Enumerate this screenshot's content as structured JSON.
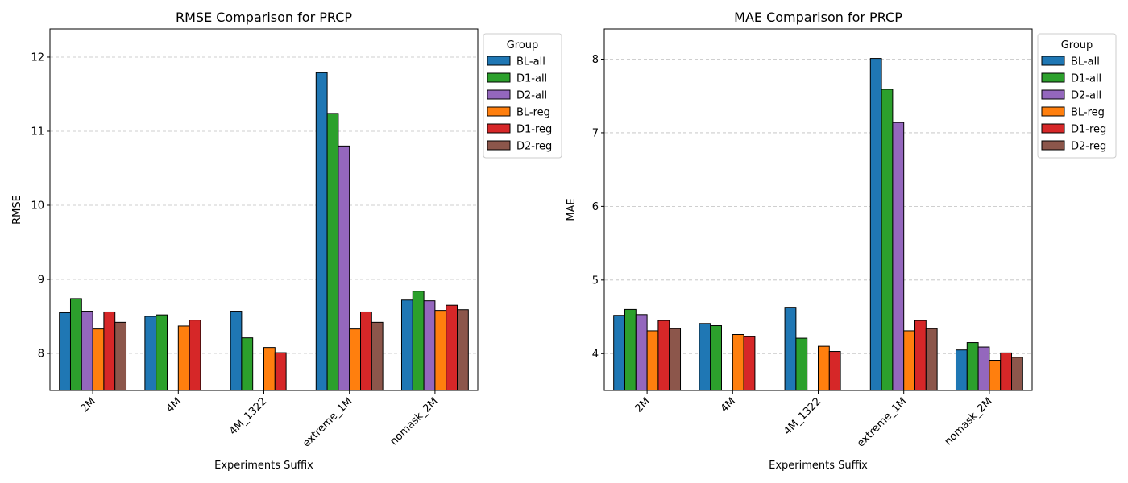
{
  "chart_data": [
    {
      "type": "bar",
      "title": "RMSE Comparison for PRCP",
      "xlabel": "Experiments Suffix",
      "ylabel": "RMSE",
      "ylim": [
        7.5,
        12.38
      ],
      "yticks": [
        8,
        9,
        10,
        11,
        12
      ],
      "grid": "y-dashed",
      "legend_title": "Group",
      "legend_position": "outside-right-top",
      "categories": [
        "2M",
        "4M",
        "4M_1322",
        "extreme_1M",
        "nomask_2M"
      ],
      "series": [
        {
          "name": "BL-all",
          "color": "#1f77b4",
          "values": [
            8.55,
            8.5,
            8.57,
            11.79,
            8.72
          ]
        },
        {
          "name": "D1-all",
          "color": "#2ca02c",
          "values": [
            8.74,
            8.52,
            8.21,
            11.24,
            8.84
          ]
        },
        {
          "name": "D2-all",
          "color": "#9467bd",
          "values": [
            8.57,
            null,
            null,
            10.8,
            8.71
          ]
        },
        {
          "name": "BL-reg",
          "color": "#ff7f0e",
          "values": [
            8.33,
            8.37,
            8.08,
            8.33,
            8.58
          ]
        },
        {
          "name": "D1-reg",
          "color": "#d62728",
          "values": [
            8.56,
            8.45,
            8.01,
            8.56,
            8.65
          ]
        },
        {
          "name": "D2-reg",
          "color": "#8c564b",
          "values": [
            8.42,
            null,
            null,
            8.42,
            8.59
          ]
        }
      ]
    },
    {
      "type": "bar",
      "title": "MAE Comparison for PRCP",
      "xlabel": "Experiments Suffix",
      "ylabel": "MAE",
      "ylim": [
        3.5,
        8.41
      ],
      "yticks": [
        4,
        5,
        6,
        7,
        8
      ],
      "grid": "y-dashed",
      "legend_title": "Group",
      "legend_position": "outside-right-top",
      "categories": [
        "2M",
        "4M",
        "4M_1322",
        "extreme_1M",
        "nomask_2M"
      ],
      "series": [
        {
          "name": "BL-all",
          "color": "#1f77b4",
          "values": [
            4.52,
            4.41,
            4.63,
            8.01,
            4.05
          ]
        },
        {
          "name": "D1-all",
          "color": "#2ca02c",
          "values": [
            4.6,
            4.38,
            4.21,
            7.59,
            4.15
          ]
        },
        {
          "name": "D2-all",
          "color": "#9467bd",
          "values": [
            4.53,
            null,
            null,
            7.14,
            4.09
          ]
        },
        {
          "name": "BL-reg",
          "color": "#ff7f0e",
          "values": [
            4.31,
            4.26,
            4.1,
            4.31,
            3.91
          ]
        },
        {
          "name": "D1-reg",
          "color": "#d62728",
          "values": [
            4.45,
            4.23,
            4.03,
            4.45,
            4.01
          ]
        },
        {
          "name": "D2-reg",
          "color": "#8c564b",
          "values": [
            4.34,
            null,
            null,
            4.34,
            3.95
          ]
        }
      ]
    }
  ]
}
